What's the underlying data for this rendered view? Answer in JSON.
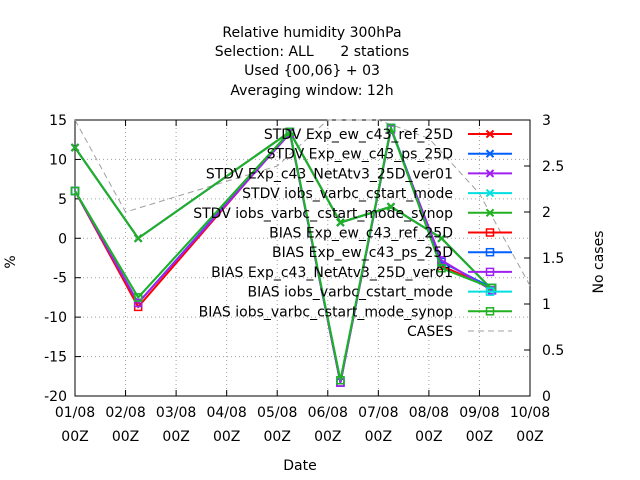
{
  "chart_data": {
    "type": "line",
    "title_lines": [
      "Relative humidity 300hPa",
      "Selection: ALL      2 stations",
      "Used {00,06} + 03",
      "Averaging window: 12h"
    ],
    "xlabel": "Date",
    "ylabel": "%",
    "y2label": "No cases",
    "x_ticks": [
      [
        "01/08",
        "00Z"
      ],
      [
        "02/08",
        "00Z"
      ],
      [
        "03/08",
        "00Z"
      ],
      [
        "04/08",
        "00Z"
      ],
      [
        "05/08",
        "00Z"
      ],
      [
        "06/08",
        "00Z"
      ],
      [
        "07/08",
        "00Z"
      ],
      [
        "08/08",
        "00Z"
      ],
      [
        "09/08",
        "00Z"
      ],
      [
        "10/08",
        "00Z"
      ]
    ],
    "xlim_days": [
      0,
      9
    ],
    "ylim": [
      -20,
      15
    ],
    "y_ticks": [
      15,
      10,
      5,
      0,
      -5,
      -10,
      -15,
      -20
    ],
    "y2lim": [
      0,
      3
    ],
    "y2_ticks": [
      "0",
      "0.5",
      "1",
      "1.5",
      "2",
      "2.5",
      "3"
    ],
    "grid": true,
    "legend_position": "top-right, inside",
    "x_days": [
      0,
      1.25,
      4.25,
      5.25,
      6.25,
      7.25,
      8.25
    ],
    "series": [
      {
        "name": "STDV Exp_ew_c43_ref_25D",
        "kind": "stdv",
        "color": "#ff0000",
        "marker": "x",
        "values": [
          11.5,
          0,
          13.5,
          2,
          4,
          0,
          -6.5
        ]
      },
      {
        "name": "STDV Exp_ew_c43_ps_25D",
        "kind": "stdv",
        "color": "#0060ff",
        "marker": "x",
        "values": [
          11.5,
          0,
          13.5,
          2,
          4,
          0,
          -6.5
        ]
      },
      {
        "name": "STDV Exp_c43_NetAtv3_25D_ver01",
        "kind": "stdv",
        "color": "#a020f0",
        "marker": "x",
        "values": [
          11.5,
          0,
          13.5,
          2,
          4,
          0,
          -6.5
        ]
      },
      {
        "name": "STDV iobs_varbc_cstart_mode",
        "kind": "stdv",
        "color": "#00e0e0",
        "marker": "x",
        "values": [
          11.5,
          0,
          13.5,
          2,
          4,
          0,
          -6.5
        ]
      },
      {
        "name": "STDV iobs_varbc_cstart_mode_synop",
        "kind": "stdv",
        "color": "#20b020",
        "marker": "x",
        "values": [
          11.5,
          0,
          13.5,
          2,
          4,
          0,
          -6.5
        ]
      },
      {
        "name": "BIAS Exp_ew_c43_ref_25D",
        "kind": "bias",
        "color": "#ff0000",
        "marker": "square",
        "values": [
          6,
          -8.7,
          13.5,
          -18.3,
          14,
          -3.5,
          -6.3
        ]
      },
      {
        "name": "BIAS Exp_ew_c43_ps_25D",
        "kind": "bias",
        "color": "#0060ff",
        "marker": "square",
        "values": [
          6,
          -8.2,
          13.5,
          -18.3,
          14,
          -3,
          -6.3
        ]
      },
      {
        "name": "BIAS Exp_c43_NetAtv3_25D_ver01",
        "kind": "bias",
        "color": "#a020f0",
        "marker": "square",
        "values": [
          6,
          -8.2,
          13.3,
          -18.3,
          13.8,
          -2.8,
          -6.6
        ]
      },
      {
        "name": "BIAS iobs_varbc_cstart_mode",
        "kind": "bias",
        "color": "#00e0e0",
        "marker": "square",
        "values": [
          6,
          -7.5,
          13.5,
          -18,
          14,
          -3.8,
          -6.3
        ]
      },
      {
        "name": "BIAS iobs_varbc_cstart_mode_synop",
        "kind": "bias",
        "color": "#20b020",
        "marker": "square",
        "values": [
          6,
          -7.5,
          13.5,
          -18,
          14,
          -3.8,
          -6.3
        ]
      },
      {
        "name": "CASES",
        "kind": "cases",
        "color": "#a0a0a0",
        "marker": "none",
        "x_days": [
          0,
          1,
          4,
          5,
          6,
          7,
          8,
          9
        ],
        "values": [
          3,
          2,
          2.5,
          3,
          3,
          2.8,
          2.2,
          1.2
        ]
      }
    ]
  }
}
